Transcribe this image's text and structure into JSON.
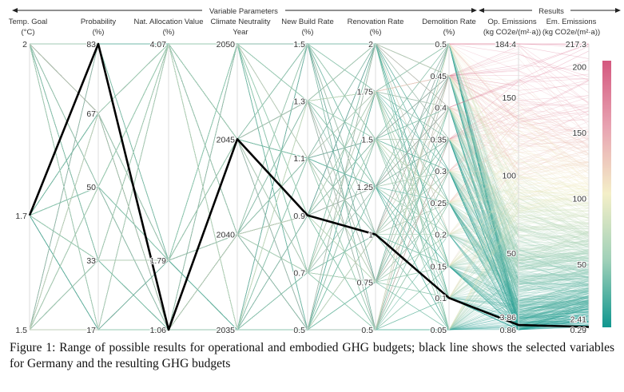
{
  "chart_data": {
    "type": "parallel-coordinates",
    "sections": [
      {
        "label": "Variable Parameters"
      },
      {
        "label": "Results"
      }
    ],
    "axes": [
      {
        "name": "Temp. Goal",
        "unit": "(°C)",
        "range": [
          1.5,
          2
        ],
        "ticks": [
          "1.5",
          "1.7",
          "2"
        ],
        "tick_values": [
          1.5,
          1.7,
          2
        ]
      },
      {
        "name": "Probability",
        "unit": "(%)",
        "range": [
          17,
          83
        ],
        "ticks": [
          "17",
          "33",
          "50",
          "67",
          "83"
        ],
        "tick_values": [
          17,
          33,
          50,
          67,
          83
        ]
      },
      {
        "name": "Nat. Allocation Value",
        "unit": "(%)",
        "range": [
          1.06,
          4.07
        ],
        "ticks": [
          "1.06",
          "1.79",
          "4.07"
        ],
        "tick_values": [
          1.06,
          1.79,
          4.07
        ]
      },
      {
        "name": "Climate Neutrality",
        "unit": "Year",
        "range": [
          2035,
          2050
        ],
        "ticks": [
          "2035",
          "2040",
          "2045",
          "2050"
        ],
        "tick_values": [
          2035,
          2040,
          2045,
          2050
        ]
      },
      {
        "name": "New Build Rate",
        "unit": "(%)",
        "range": [
          0.5,
          1.5
        ],
        "ticks": [
          "0.5",
          "0.7",
          "0.9",
          "1.1",
          "1.3",
          "1.5"
        ],
        "tick_values": [
          0.5,
          0.7,
          0.9,
          1.1,
          1.3,
          1.5
        ]
      },
      {
        "name": "Renovation Rate",
        "unit": "(%)",
        "range": [
          0.5,
          2
        ],
        "ticks": [
          "0.5",
          "0.75",
          "1",
          "1.25",
          "1.5",
          "1.75",
          "2"
        ],
        "tick_values": [
          0.5,
          0.75,
          1,
          1.25,
          1.5,
          1.75,
          2
        ]
      },
      {
        "name": "Demolition Rate",
        "unit": "(%)",
        "range": [
          0.05,
          0.5
        ],
        "ticks": [
          "0.05",
          "0.1",
          "0.15",
          "0.2",
          "0.25",
          "0.3",
          "0.35",
          "0.4",
          "0.45",
          "0.5"
        ],
        "tick_values": [
          0.05,
          0.1,
          0.15,
          0.2,
          0.25,
          0.3,
          0.35,
          0.4,
          0.45,
          0.5
        ]
      },
      {
        "name": "Op. Emissions",
        "unit": "(kg CO2e/(m²·a))",
        "range": [
          0.86,
          184.4
        ],
        "ticks": [
          "0.86",
          "3.86",
          "50",
          "100",
          "150",
          "184.4"
        ],
        "tick_values": [
          0.86,
          3.86,
          50,
          100,
          150,
          184.4
        ]
      },
      {
        "name": "Em. Emissions",
        "unit": "(kg CO2e/(m²·a))",
        "range": [
          0.29,
          217.3
        ],
        "ticks": [
          "0.29",
          "2.41",
          "50",
          "100",
          "150",
          "200",
          "217.3"
        ],
        "tick_values": [
          0.29,
          2.41,
          50,
          100,
          150,
          200,
          217.3
        ]
      }
    ],
    "selected_line": {
      "label": "Germany",
      "values": [
        1.7,
        83,
        1.06,
        2045,
        0.9,
        1,
        0.1,
        3.86,
        2.41
      ],
      "color": "#000000"
    },
    "colorscale": {
      "by": "Em. Emissions",
      "stops": [
        "#10968f",
        "#9fd0b8",
        "#f4efc8",
        "#e8a4b2",
        "#d4587f"
      ]
    }
  },
  "caption": "Figure 1: Range of possible results for operational and embodied GHG budgets; black line shows the selected variables for Germany and the resulting GHG budgets"
}
